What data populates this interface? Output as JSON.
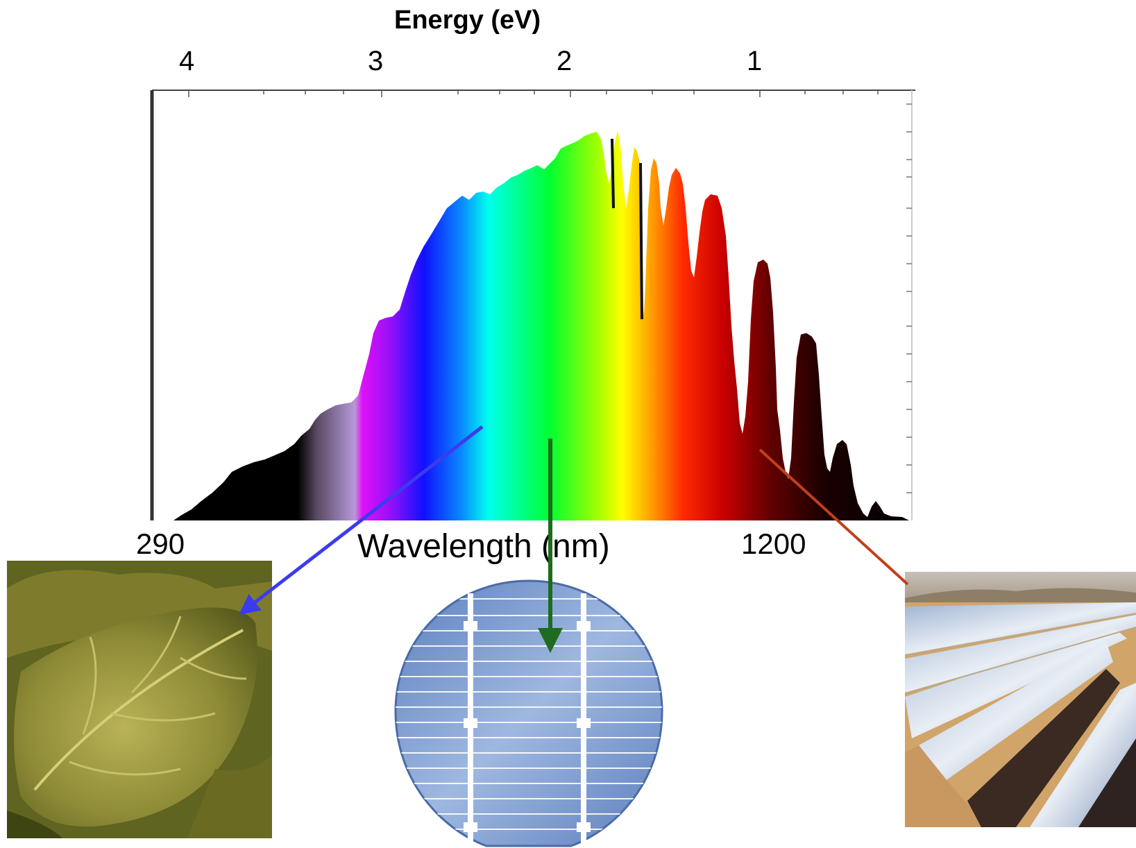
{
  "top_axis": {
    "title": "Energy (eV)",
    "ticks": [
      "4",
      "3",
      "2",
      "1"
    ]
  },
  "bottom_axis": {
    "title": "Wavelength (nm)",
    "ticks": [
      "290",
      "1200"
    ]
  },
  "colors": {
    "blue_arrow": "#3b3bef",
    "green_arrow": "#1f6b1f",
    "red_arrow": "#c0401a",
    "wafer_fill": "#7f9fd0",
    "wafer_line": "#ffffff"
  },
  "pictures": {
    "leaf": "green-leaf-photo",
    "wafer": "solar-cell-wafer",
    "mirrors": "solar-thermal-parabolic-mirrors-photo"
  }
}
